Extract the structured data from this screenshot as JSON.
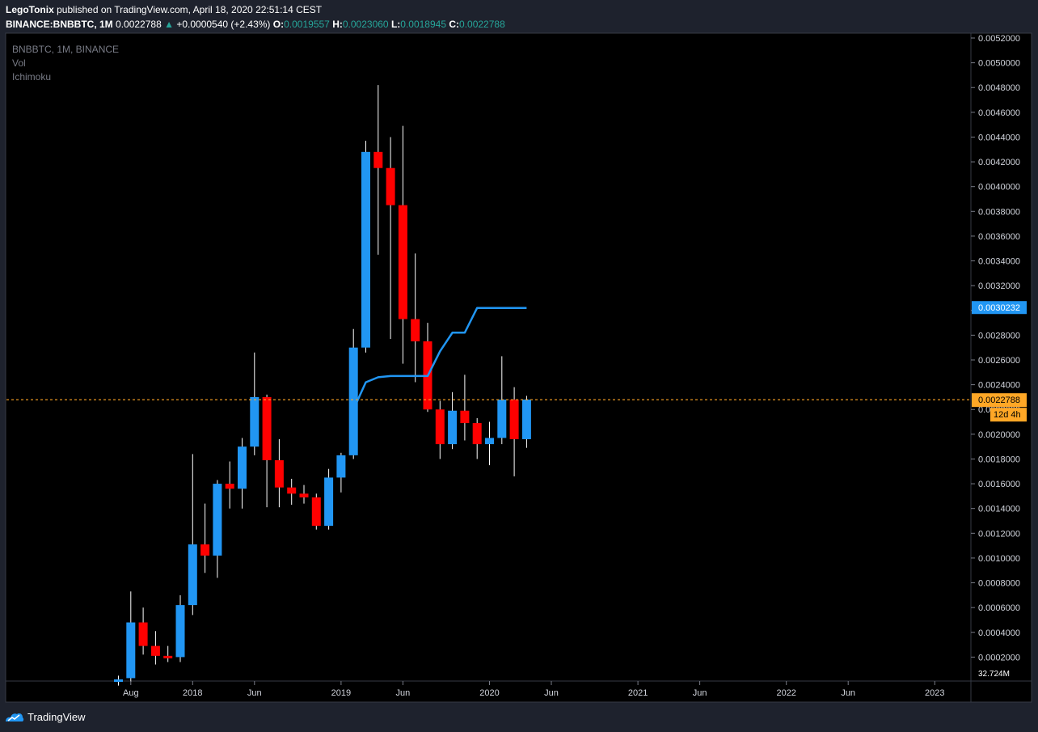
{
  "header": {
    "author": "LegoTonix",
    "published_text": "published on TradingView.com, April 18, 2020 22:51:14 CEST",
    "symbol_interval": "BINANCE:BNBBTC, 1M",
    "last": "0.0022788",
    "change": "+0.0000540 (+2.43%)",
    "o_label": "O:",
    "o": "0.0019557",
    "h_label": "H:",
    "h": "0.0023060",
    "l_label": "L:",
    "l": "0.0018945",
    "c_label": "C:",
    "c": "0.0022788"
  },
  "legend": {
    "symbol": "BNBBTC, 1M, BINANCE",
    "vol": "Vol",
    "ichimoku": "Ichimoku"
  },
  "footer": {
    "brand": "TradingView"
  },
  "colors": {
    "up": "#2196f3",
    "down": "#ff0000",
    "cloud_line": "#2196f3",
    "price_line": "#ffa726",
    "background": "#000000",
    "frame": "#1e222d"
  },
  "chart_data": {
    "type": "candlestick",
    "ylim": [
      0,
      0.0052
    ],
    "price_ticks": [
      "0.0002000",
      "0.0004000",
      "0.0006000",
      "0.0008000",
      "0.0010000",
      "0.0012000",
      "0.0014000",
      "0.0016000",
      "0.0018000",
      "0.0020000",
      "0.0022000",
      "0.0024000",
      "0.0026000",
      "0.0028000",
      "0.0030000",
      "0.0032000",
      "0.0034000",
      "0.0036000",
      "0.0038000",
      "0.0040000",
      "0.0042000",
      "0.0044000",
      "0.0046000",
      "0.0048000",
      "0.0050000",
      "0.0052000"
    ],
    "time_ticks": [
      "Aug",
      "2018",
      "Jun",
      "2019",
      "Jun",
      "2020",
      "Jun",
      "2021",
      "Jun",
      "2022",
      "Jun",
      "2023"
    ],
    "volume_label": "32.724M",
    "current_price_label": "0.0022788",
    "countdown_label": "12d 4h",
    "cloud_price_label": "0.0030232",
    "candles": [
      {
        "t": "2017-07",
        "o": 0.0,
        "h": 5e-05,
        "l": -3e-05,
        "c": 2e-05
      },
      {
        "t": "2017-08",
        "o": 3e-05,
        "h": 0.00073,
        "l": 0.0,
        "c": 0.00048
      },
      {
        "t": "2017-09",
        "o": 0.00048,
        "h": 0.0006,
        "l": 0.00022,
        "c": 0.00029
      },
      {
        "t": "2017-10",
        "o": 0.00029,
        "h": 0.00041,
        "l": 0.00014,
        "c": 0.00021
      },
      {
        "t": "2017-11",
        "o": 0.00021,
        "h": 0.00029,
        "l": 0.00016,
        "c": 0.0002
      },
      {
        "t": "2017-12",
        "o": 0.0002,
        "h": 0.0007,
        "l": 0.00016,
        "c": 0.00062
      },
      {
        "t": "2018-01",
        "o": 0.00062,
        "h": 0.00184,
        "l": 0.00054,
        "c": 0.00111
      },
      {
        "t": "2018-02",
        "o": 0.00111,
        "h": 0.00144,
        "l": 0.00088,
        "c": 0.00102
      },
      {
        "t": "2018-03",
        "o": 0.00102,
        "h": 0.00163,
        "l": 0.00084,
        "c": 0.0016
      },
      {
        "t": "2018-04",
        "o": 0.0016,
        "h": 0.00178,
        "l": 0.0014,
        "c": 0.00156
      },
      {
        "t": "2018-05",
        "o": 0.00156,
        "h": 0.00197,
        "l": 0.0014,
        "c": 0.0019
      },
      {
        "t": "2018-06",
        "o": 0.0019,
        "h": 0.00266,
        "l": 0.00183,
        "c": 0.0023
      },
      {
        "t": "2018-07",
        "o": 0.0023,
        "h": 0.00232,
        "l": 0.00141,
        "c": 0.00179
      },
      {
        "t": "2018-08",
        "o": 0.00179,
        "h": 0.00196,
        "l": 0.00141,
        "c": 0.00157
      },
      {
        "t": "2018-09",
        "o": 0.00157,
        "h": 0.00164,
        "l": 0.00143,
        "c": 0.00152
      },
      {
        "t": "2018-10",
        "o": 0.00152,
        "h": 0.00159,
        "l": 0.00144,
        "c": 0.00149
      },
      {
        "t": "2018-11",
        "o": 0.00149,
        "h": 0.00152,
        "l": 0.00123,
        "c": 0.00126
      },
      {
        "t": "2018-12",
        "o": 0.00126,
        "h": 0.00172,
        "l": 0.00123,
        "c": 0.00165
      },
      {
        "t": "2019-01",
        "o": 0.00165,
        "h": 0.00185,
        "l": 0.00153,
        "c": 0.00183
      },
      {
        "t": "2019-02",
        "o": 0.00183,
        "h": 0.00285,
        "l": 0.0018,
        "c": 0.0027
      },
      {
        "t": "2019-03",
        "o": 0.0027,
        "h": 0.00437,
        "l": 0.00266,
        "c": 0.00428
      },
      {
        "t": "2019-04",
        "o": 0.00428,
        "h": 0.00482,
        "l": 0.00345,
        "c": 0.00415
      },
      {
        "t": "2019-05",
        "o": 0.00415,
        "h": 0.0044,
        "l": 0.00277,
        "c": 0.00385
      },
      {
        "t": "2019-06",
        "o": 0.00385,
        "h": 0.00449,
        "l": 0.00257,
        "c": 0.00293
      },
      {
        "t": "2019-07",
        "o": 0.00293,
        "h": 0.00346,
        "l": 0.00242,
        "c": 0.00275
      },
      {
        "t": "2019-08",
        "o": 0.00275,
        "h": 0.0029,
        "l": 0.00218,
        "c": 0.0022
      },
      {
        "t": "2019-09",
        "o": 0.0022,
        "h": 0.00227,
        "l": 0.0018,
        "c": 0.00192
      },
      {
        "t": "2019-10",
        "o": 0.00192,
        "h": 0.00234,
        "l": 0.00188,
        "c": 0.00219
      },
      {
        "t": "2019-11",
        "o": 0.00219,
        "h": 0.00248,
        "l": 0.00195,
        "c": 0.00209
      },
      {
        "t": "2019-12",
        "o": 0.00209,
        "h": 0.00213,
        "l": 0.0018,
        "c": 0.00192
      },
      {
        "t": "2020-01",
        "o": 0.00192,
        "h": 0.0021,
        "l": 0.00175,
        "c": 0.00197
      },
      {
        "t": "2020-02",
        "o": 0.00197,
        "h": 0.00263,
        "l": 0.00192,
        "c": 0.00228
      },
      {
        "t": "2020-03",
        "o": 0.00228,
        "h": 0.00238,
        "l": 0.00166,
        "c": 0.00196
      },
      {
        "t": "2020-04",
        "o": 0.00196,
        "h": 0.00231,
        "l": 0.00189,
        "c": 0.00228
      }
    ],
    "ichimoku_line": [
      {
        "t": "2019-02",
        "v": 0.0022
      },
      {
        "t": "2019-03",
        "v": 0.00242
      },
      {
        "t": "2019-04",
        "v": 0.00246
      },
      {
        "t": "2019-05",
        "v": 0.00247
      },
      {
        "t": "2019-06",
        "v": 0.00247
      },
      {
        "t": "2019-07",
        "v": 0.00247
      },
      {
        "t": "2019-08",
        "v": 0.00247
      },
      {
        "t": "2019-09",
        "v": 0.00267
      },
      {
        "t": "2019-10",
        "v": 0.00282
      },
      {
        "t": "2019-11",
        "v": 0.00282
      },
      {
        "t": "2019-12",
        "v": 0.00302
      },
      {
        "t": "2020-01",
        "v": 0.00302
      },
      {
        "t": "2020-02",
        "v": 0.00302
      },
      {
        "t": "2020-03",
        "v": 0.00302
      },
      {
        "t": "2020-04",
        "v": 0.00302
      }
    ]
  }
}
